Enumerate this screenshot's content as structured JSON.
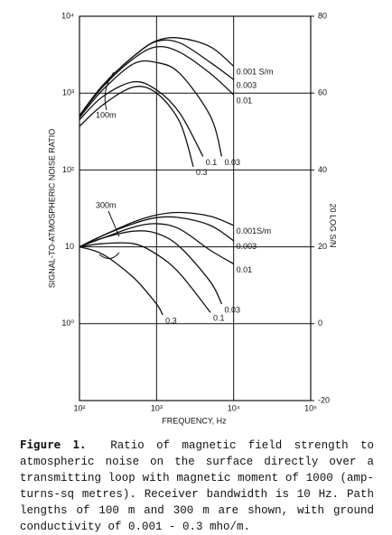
{
  "chart_data": {
    "type": "line",
    "x_label": "FREQUENCY, Hz",
    "y_label": "SIGNAL-TO-ATMOSPHERIC NOISE RATIO",
    "y2_label": "20 LOG S/N",
    "xscale": "log",
    "yscale": "log",
    "xlim": [
      100,
      100000
    ],
    "ylim": [
      0.1,
      10000
    ],
    "y2lim": [
      -20,
      80
    ],
    "xticks": [
      {
        "value": 100,
        "label": "10²"
      },
      {
        "value": 1000,
        "label": "10³"
      },
      {
        "value": 10000,
        "label": "10⁴"
      },
      {
        "value": 100000,
        "label": "10⁵"
      }
    ],
    "yticks": [
      {
        "value": 10000,
        "label": "10⁴"
      },
      {
        "value": 1000,
        "label": "10³"
      },
      {
        "value": 100,
        "label": "10²"
      },
      10,
      {
        "value": 1,
        "label": "10⁰"
      }
    ],
    "y2ticks": [
      80,
      60,
      40,
      20,
      0,
      -20
    ],
    "grid": true,
    "annotations": [
      "100m",
      "300m"
    ],
    "series": [
      {
        "name": "0.001 S/m",
        "color": "#111",
        "x": [
          100,
          200,
          500,
          1000,
          2000,
          5000,
          10000
        ],
        "values": [
          510,
          1260,
          3000,
          4800,
          5200,
          4000,
          2240
        ]
      },
      {
        "name": "0.003",
        "color": "#111",
        "x": [
          100,
          200,
          500,
          1000,
          2000,
          5000,
          10000
        ],
        "values": [
          510,
          1260,
          3000,
          4700,
          4500,
          2500,
          1500
        ]
      },
      {
        "name": "0.01",
        "color": "#111",
        "x": [
          100,
          200,
          500,
          1000,
          2000,
          5000,
          10000
        ],
        "values": [
          500,
          1200,
          2800,
          4000,
          3400,
          1800,
          950
        ]
      },
      {
        "name": "0.03",
        "color": "#111",
        "x": [
          100,
          200,
          500,
          1000,
          2000,
          5000,
          7000
        ],
        "values": [
          480,
          1100,
          2400,
          2500,
          1800,
          500,
          150
        ]
      },
      {
        "name": "0.1",
        "color": "#111",
        "x": [
          100,
          200,
          500,
          1000,
          2000,
          4000
        ],
        "values": [
          450,
          900,
          1400,
          1100,
          550,
          150
        ]
      },
      {
        "name": "0.3",
        "color": "#111",
        "x": [
          100,
          200,
          500,
          1000,
          2000,
          3000
        ],
        "values": [
          370,
          700,
          1200,
          1000,
          420,
          110
        ]
      },
      {
        "name": "0.001S/m",
        "color": "#111",
        "x": [
          100,
          200,
          500,
          1000,
          2000,
          5000,
          10000
        ],
        "values": [
          10,
          14,
          21,
          26,
          28,
          25,
          19
        ]
      },
      {
        "name": "0.003",
        "color": "#111",
        "x": [
          100,
          200,
          500,
          1000,
          2000,
          5000,
          10000
        ],
        "values": [
          10,
          14,
          20,
          24,
          24,
          19,
          12
        ]
      },
      {
        "name": "0.01",
        "color": "#111",
        "x": [
          100,
          200,
          500,
          1000,
          2000,
          5000,
          10000
        ],
        "values": [
          10,
          13,
          18,
          20,
          17,
          9,
          6
        ]
      },
      {
        "name": "0.03",
        "color": "#111",
        "x": [
          100,
          200,
          500,
          1000,
          2000,
          5000,
          7000
        ],
        "values": [
          10,
          13,
          16,
          15,
          10,
          3.5,
          1.8
        ]
      },
      {
        "name": "0.1",
        "color": "#111",
        "x": [
          100,
          200,
          500,
          1000,
          2000,
          5000
        ],
        "values": [
          10,
          11,
          11,
          8,
          4.5,
          1.4
        ]
      },
      {
        "name": "0.3",
        "color": "#111",
        "x": [
          100,
          200,
          500,
          1000,
          1200
        ],
        "values": [
          10,
          8,
          4,
          1.8,
          1.3
        ]
      }
    ]
  },
  "caption": {
    "label": "Figure 1.",
    "text": "Ratio of magnetic field strength to atmospheric noise on the surface directly over a transmitting loop with magnetic moment of 1000 (amp-turns-sq metres). Receiver bandwidth is 10 Hz. Path lengths of 100 m and 300 m are shown, with ground conductivity of 0.001 - 0.3 mho/m."
  }
}
